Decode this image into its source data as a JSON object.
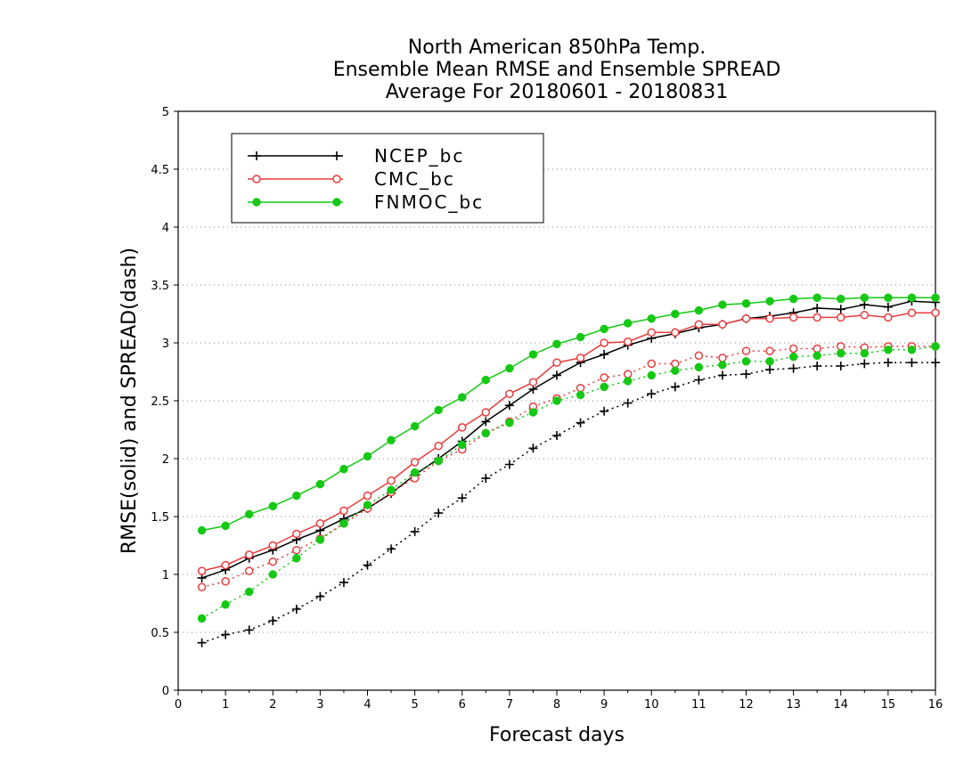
{
  "chart_data": {
    "type": "line",
    "title": [
      "North American 850hPa Temp.",
      "Ensemble Mean RMSE and Ensemble SPREAD",
      "Average For 20180601 - 20180831"
    ],
    "xlabel": "Forecast days",
    "ylabel": "RMSE(solid) and SPREAD(dash)",
    "xlim": [
      0,
      16
    ],
    "ylim": [
      0,
      5
    ],
    "xticks": [
      "0",
      "1",
      "2",
      "3",
      "4",
      "5",
      "6",
      "7",
      "8",
      "9",
      "10",
      "11",
      "12",
      "13",
      "14",
      "15",
      "16"
    ],
    "yticks": [
      "0",
      "0.5",
      "1",
      "1.5",
      "2",
      "2.5",
      "3",
      "3.5",
      "4",
      "4.5",
      "5"
    ],
    "grid": "horizontal dotted",
    "legend_position": "top-left",
    "x": [
      0.5,
      1,
      1.5,
      2,
      2.5,
      3,
      3.5,
      4,
      4.5,
      5,
      5.5,
      6,
      6.5,
      7,
      7.5,
      8,
      8.5,
      9,
      9.5,
      10,
      10.5,
      11,
      11.5,
      12,
      12.5,
      13,
      13.5,
      14,
      14.5,
      15,
      15.5,
      16
    ],
    "series": [
      {
        "name": "NCEP_bc",
        "color": "#000000",
        "marker": "plus",
        "rmse": [
          0.97,
          1.04,
          1.14,
          1.21,
          1.3,
          1.38,
          1.48,
          1.57,
          1.7,
          1.86,
          2.0,
          2.15,
          2.32,
          2.46,
          2.6,
          2.72,
          2.83,
          2.9,
          2.98,
          3.04,
          3.08,
          3.13,
          3.16,
          3.21,
          3.23,
          3.26,
          3.3,
          3.29,
          3.33,
          3.31,
          3.36,
          3.35
        ],
        "spread": [
          0.41,
          0.48,
          0.52,
          0.6,
          0.7,
          0.81,
          0.93,
          1.08,
          1.22,
          1.37,
          1.53,
          1.66,
          1.83,
          1.95,
          2.09,
          2.2,
          2.31,
          2.41,
          2.48,
          2.56,
          2.62,
          2.68,
          2.72,
          2.73,
          2.77,
          2.78,
          2.8,
          2.8,
          2.82,
          2.83,
          2.83,
          2.83
        ]
      },
      {
        "name": "CMC_bc",
        "color": "#e83c3c",
        "marker": "open-circle",
        "rmse": [
          1.03,
          1.08,
          1.17,
          1.25,
          1.35,
          1.44,
          1.55,
          1.68,
          1.81,
          1.97,
          2.11,
          2.27,
          2.4,
          2.56,
          2.66,
          2.83,
          2.87,
          3.0,
          3.01,
          3.09,
          3.09,
          3.16,
          3.16,
          3.21,
          3.21,
          3.22,
          3.22,
          3.22,
          3.24,
          3.22,
          3.26,
          3.26
        ],
        "spread": [
          0.89,
          0.94,
          1.03,
          1.11,
          1.21,
          1.31,
          1.44,
          1.57,
          1.71,
          1.83,
          1.98,
          2.08,
          2.22,
          2.32,
          2.45,
          2.52,
          2.61,
          2.7,
          2.73,
          2.82,
          2.82,
          2.89,
          2.87,
          2.93,
          2.93,
          2.95,
          2.95,
          2.97,
          2.96,
          2.97,
          2.97,
          2.97
        ]
      },
      {
        "name": "FNMOC_bc",
        "color": "#14c814",
        "marker": "filled-circle",
        "rmse": [
          1.38,
          1.42,
          1.52,
          1.59,
          1.68,
          1.78,
          1.91,
          2.02,
          2.16,
          2.28,
          2.42,
          2.53,
          2.68,
          2.78,
          2.9,
          2.99,
          3.05,
          3.12,
          3.17,
          3.21,
          3.25,
          3.28,
          3.33,
          3.34,
          3.36,
          3.38,
          3.39,
          3.38,
          3.39,
          3.39,
          3.39,
          3.39
        ],
        "spread": [
          0.62,
          0.74,
          0.85,
          1.0,
          1.14,
          1.3,
          1.44,
          1.6,
          1.73,
          1.88,
          1.98,
          2.12,
          2.22,
          2.31,
          2.4,
          2.5,
          2.55,
          2.62,
          2.67,
          2.72,
          2.76,
          2.79,
          2.81,
          2.84,
          2.84,
          2.88,
          2.89,
          2.91,
          2.91,
          2.94,
          2.94,
          2.97
        ]
      }
    ]
  }
}
